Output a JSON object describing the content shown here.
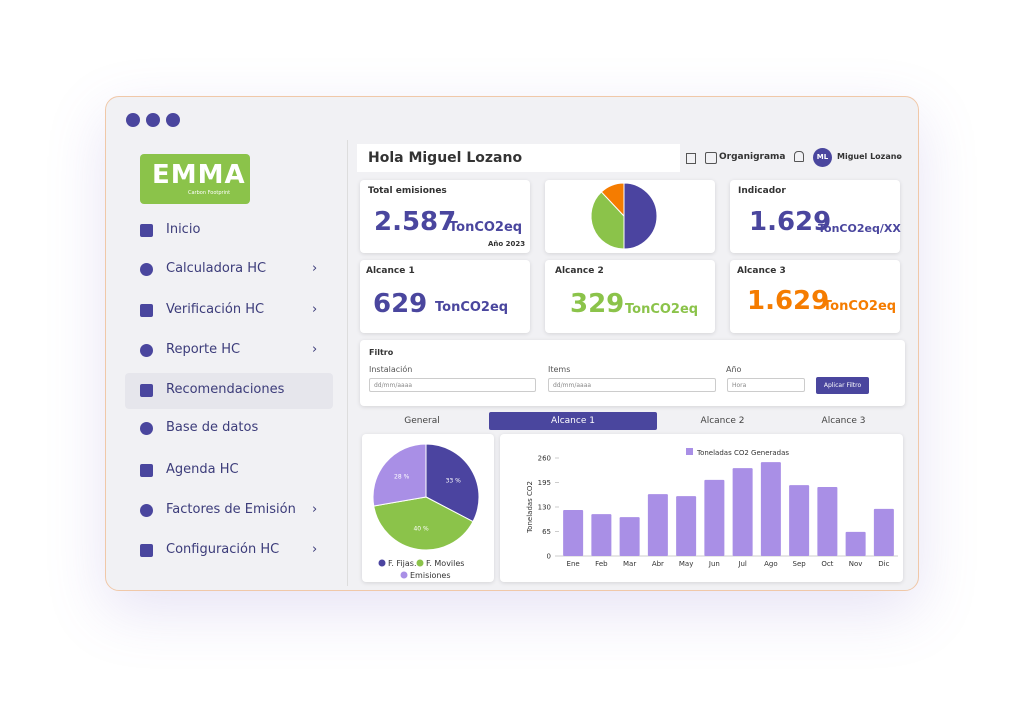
{
  "sidebar": {
    "logo": "EMMA",
    "logo_subtitle": "Carbon Footprint",
    "menu": [
      {
        "label": "Inicio",
        "submenu": false
      },
      {
        "label": "Calculadora HC",
        "submenu": true
      },
      {
        "label": "Verificación HC",
        "submenu": true
      },
      {
        "label": "Reporte HC",
        "submenu": true
      },
      {
        "label": "Recomendaciones",
        "submenu": false,
        "active": true
      },
      {
        "label": "Base de datos",
        "submenu": false
      },
      {
        "label": "Agenda HC",
        "submenu": false
      },
      {
        "label": "Factores de Emisión",
        "submenu": true
      },
      {
        "label": "Configuración HC",
        "submenu": true
      }
    ]
  },
  "header": {
    "greeting": "Hola Miguel Lozano",
    "organigrama": "Organigrama",
    "avatar": "ML",
    "user": "Miguel Lozano"
  },
  "cards": {
    "total": {
      "title": "Total emisiones",
      "value": "2.587",
      "unit": "TonCO2eq",
      "year": "Año 2023"
    },
    "indicator": {
      "title": "Indicador",
      "value": "1.629",
      "unit": "TonCO2eq/XX"
    },
    "alcance1": {
      "title": "Alcance 1",
      "value": "629",
      "unit": "TonCO2eq"
    },
    "alcance2": {
      "title": "Alcance 2",
      "value": "329",
      "unit": "TonCO2eq"
    },
    "alcance3": {
      "title": "Alcance 3",
      "value": "1.629",
      "unit": "TonCO2eq"
    }
  },
  "filter": {
    "title": "Filtro",
    "fields": [
      {
        "label": "Instalación",
        "placeholder": "dd/mm/aaaa"
      },
      {
        "label": "Items",
        "placeholder": "dd/mm/aaaa"
      },
      {
        "label": "Año",
        "placeholder": "Hora"
      }
    ],
    "button": "Aplicar Filtro"
  },
  "tabs": [
    {
      "label": "General"
    },
    {
      "label": "Alcance 1",
      "active": true
    },
    {
      "label": "Alcance 2"
    },
    {
      "label": "Alcance 3"
    }
  ],
  "chart_data": [
    {
      "type": "pie",
      "series": [
        {
          "color": "#4b44a0",
          "values": [
            50
          ]
        },
        {
          "color": "#8bc34a",
          "values": [
            38
          ]
        },
        {
          "color": "#f57c00",
          "values": [
            12
          ]
        }
      ]
    },
    {
      "type": "pie",
      "series": [
        {
          "name": "F. Fijas.",
          "color": "#4b44a0",
          "values": [
            33
          ],
          "value_labels": [
            "33 %"
          ]
        },
        {
          "name": "F. Moviles",
          "color": "#8bc34a",
          "values": [
            40
          ],
          "value_labels": [
            "40 %"
          ]
        },
        {
          "name": "Emisiones",
          "color": "#a98fe6",
          "values": [
            28
          ],
          "value_labels": [
            "28 %"
          ]
        }
      ]
    },
    {
      "type": "bar",
      "ylabel": "Toneladas CO2",
      "categories": [
        "Ene",
        "Feb",
        "Mar",
        "Abr",
        "May",
        "Jun",
        "Jul",
        "Ago",
        "Sep",
        "Oct",
        "Nov",
        "Dic"
      ],
      "series": [
        {
          "name": "Toneladas CO2 Generadas",
          "color": "#a98fe6",
          "values": [
            122,
            111,
            103,
            164,
            159,
            202,
            233,
            249,
            188,
            183,
            64,
            125
          ]
        }
      ],
      "ylim": [
        0,
        260
      ],
      "yticks": [
        0,
        65,
        130,
        195,
        260
      ],
      "grid": false
    }
  ]
}
